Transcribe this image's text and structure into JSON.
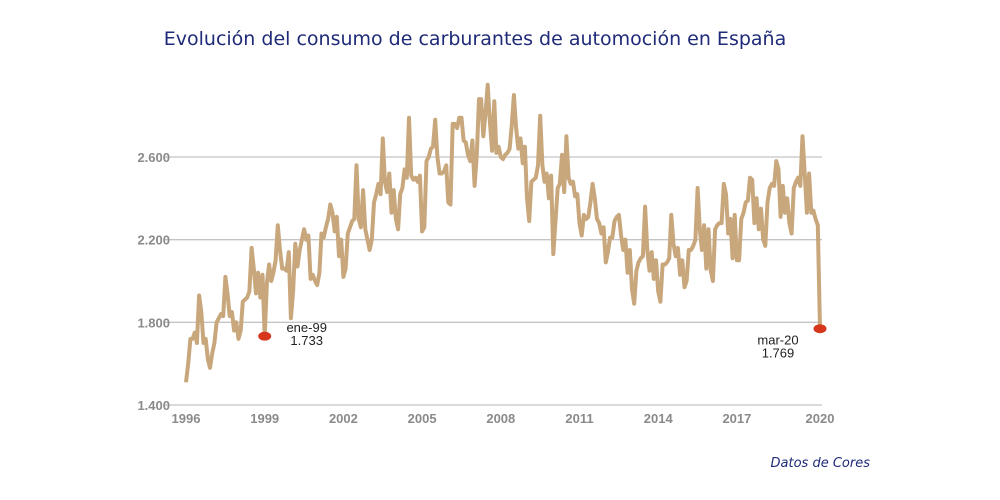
{
  "chart_data": {
    "type": "line",
    "title": "Evolución del consumo de carburantes de automoción en España",
    "source": "Datos de Cores",
    "xlabel": "",
    "ylabel": "",
    "x_start": "1996-01",
    "x_end": "2020-03",
    "x_frequency": "monthly",
    "x_ticks": [
      "1996",
      "1999",
      "2002",
      "2005",
      "2008",
      "2011",
      "2014",
      "2017",
      "2020"
    ],
    "y_ticks": [
      "1.400",
      "1.800",
      "2.200",
      "2.600"
    ],
    "ylim": [
      1400,
      2950
    ],
    "grid": "horizontal",
    "colors": {
      "line": "#c9a77c",
      "marker": "#d6361c",
      "grid": "#c4c4c4"
    },
    "series": [
      {
        "values": [
          1510,
          1600,
          1720,
          1720,
          1750,
          1700,
          1930,
          1850,
          1700,
          1720,
          1620,
          1580,
          1650,
          1700,
          1800,
          1820,
          1840,
          1830,
          2020,
          1940,
          1830,
          1850,
          1760,
          1800,
          1720,
          1760,
          1900,
          1910,
          1920,
          1950,
          2160,
          2060,
          1940,
          2040,
          1920,
          2030,
          1733,
          1990,
          2080,
          2000,
          2040,
          2100,
          2270,
          2150,
          2060,
          2060,
          2050,
          2140,
          1820,
          1950,
          2180,
          2070,
          2150,
          2200,
          2250,
          2200,
          2220,
          2010,
          2030,
          2000,
          1980,
          2040,
          2230,
          2210,
          2260,
          2300,
          2370,
          2330,
          2240,
          2310,
          2120,
          2200,
          2020,
          2060,
          2230,
          2260,
          2290,
          2300,
          2560,
          2300,
          2260,
          2440,
          2250,
          2200,
          2150,
          2200,
          2380,
          2420,
          2470,
          2420,
          2690,
          2480,
          2430,
          2520,
          2330,
          2440,
          2300,
          2250,
          2420,
          2450,
          2540,
          2500,
          2790,
          2510,
          2490,
          2500,
          2480,
          2510,
          2240,
          2260,
          2580,
          2600,
          2640,
          2650,
          2780,
          2600,
          2520,
          2520,
          2530,
          2560,
          2380,
          2370,
          2760,
          2760,
          2740,
          2790,
          2790,
          2680,
          2670,
          2610,
          2580,
          2680,
          2460,
          2610,
          2880,
          2880,
          2700,
          2810,
          2950,
          2770,
          2630,
          2870,
          2620,
          2650,
          2600,
          2590,
          2610,
          2620,
          2640,
          2750,
          2900,
          2740,
          2640,
          2690,
          2570,
          2650,
          2400,
          2290,
          2480,
          2490,
          2500,
          2560,
          2800,
          2560,
          2480,
          2520,
          2400,
          2510,
          2130,
          2290,
          2450,
          2470,
          2610,
          2430,
          2700,
          2500,
          2470,
          2480,
          2410,
          2420,
          2280,
          2220,
          2320,
          2300,
          2310,
          2380,
          2470,
          2400,
          2300,
          2280,
          2230,
          2260,
          2090,
          2140,
          2210,
          2210,
          2290,
          2310,
          2320,
          2220,
          2150,
          2200,
          2040,
          2150,
          1960,
          1890,
          2050,
          2090,
          2110,
          2120,
          2360,
          2150,
          2050,
          2140,
          2010,
          2100,
          1950,
          1900,
          2080,
          2080,
          2090,
          2110,
          2320,
          2180,
          2120,
          2160,
          2030,
          2100,
          1970,
          2000,
          2150,
          2150,
          2170,
          2200,
          2450,
          2250,
          2150,
          2270,
          2060,
          2250,
          2050,
          2000,
          2250,
          2270,
          2280,
          2280,
          2470,
          2420,
          2230,
          2300,
          2110,
          2320,
          2100,
          2100,
          2300,
          2330,
          2380,
          2390,
          2500,
          2490,
          2280,
          2400,
          2250,
          2350,
          2200,
          2170,
          2380,
          2450,
          2470,
          2460,
          2580,
          2540,
          2310,
          2460,
          2330,
          2400,
          2280,
          2230,
          2450,
          2480,
          2500,
          2460,
          2700,
          2520,
          2330,
          2520,
          2330,
          2340,
          2300,
          2270,
          1769
        ]
      }
    ],
    "annotations": [
      {
        "label": "ene-99",
        "value_label": "1.733",
        "month_index": 36,
        "value": 1733
      },
      {
        "label": "mar-20",
        "value_label": "1.769",
        "month_index": 290,
        "value": 1769
      }
    ]
  }
}
